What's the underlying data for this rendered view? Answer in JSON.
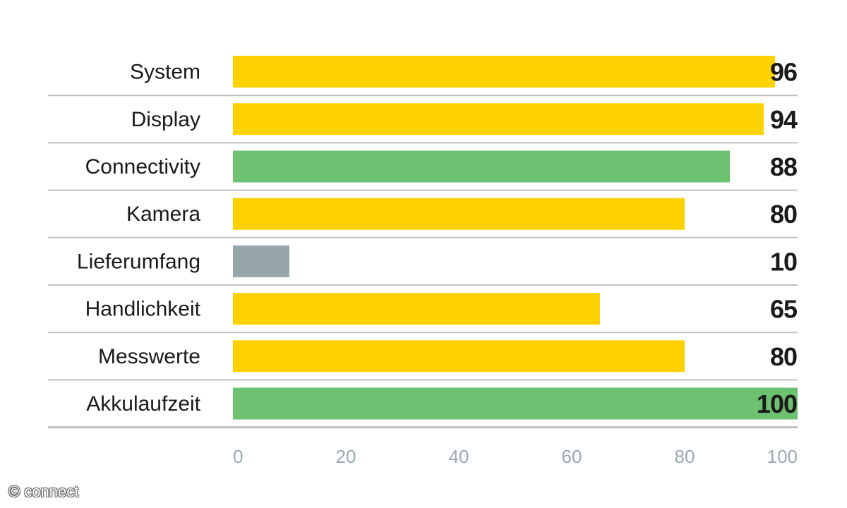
{
  "chart_data": {
    "type": "bar",
    "orientation": "horizontal",
    "categories": [
      "System",
      "Display",
      "Connectivity",
      "Kamera",
      "Lieferumfang",
      "Handlichkeit",
      "Messwerte",
      "Akkulaufzeit"
    ],
    "values": [
      96,
      94,
      88,
      80,
      10,
      65,
      80,
      100
    ],
    "colors": [
      "#fdd200",
      "#fdd200",
      "#6cc270",
      "#fdd200",
      "#96a6aa",
      "#fdd200",
      "#fdd200",
      "#6cc270"
    ],
    "xticks": [
      0,
      20,
      40,
      60,
      80,
      100
    ],
    "xlim": [
      0,
      100
    ],
    "grid": false,
    "separator_color": "#c0c0c0",
    "tick_color": "#9aa9b0"
  },
  "watermark": "© connect"
}
